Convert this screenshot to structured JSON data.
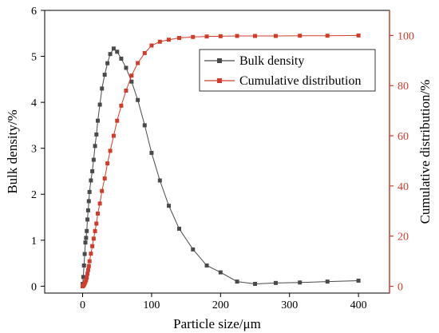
{
  "chart_data": {
    "type": "line",
    "title": "",
    "xlabel": "Particle size/μm",
    "ylabel": "Bulk density/%",
    "y2label": "Cumulative distribution/%",
    "xlim": [
      -55,
      445
    ],
    "ylim": [
      -0.15,
      6
    ],
    "y2lim": [
      -2.7,
      110
    ],
    "xticks": [
      0,
      100,
      200,
      300,
      400
    ],
    "yticks": [
      0,
      1,
      2,
      3,
      4,
      5,
      6
    ],
    "y2ticks": [
      0,
      20,
      40,
      60,
      80,
      100
    ],
    "legend_position": "upper-right",
    "grid": false,
    "series": [
      {
        "name": "Bulk density",
        "axis": "left",
        "color": "#4a4a4a",
        "marker": "square",
        "x": [
          0,
          1,
          2,
          3,
          4,
          5,
          6,
          7,
          8,
          9,
          10,
          12,
          14,
          16,
          18,
          20,
          22,
          25,
          28,
          32,
          36,
          40,
          45,
          50,
          56,
          63,
          71,
          80,
          90,
          100,
          112,
          125,
          140,
          160,
          180,
          200,
          224,
          250,
          280,
          315,
          355,
          400
        ],
        "values": [
          0.05,
          0.2,
          0.45,
          0.7,
          0.95,
          1.05,
          1.2,
          1.45,
          1.65,
          1.85,
          2.05,
          2.3,
          2.5,
          2.75,
          3.05,
          3.3,
          3.6,
          3.95,
          4.3,
          4.6,
          4.85,
          5.05,
          5.17,
          5.1,
          4.95,
          4.75,
          4.45,
          4.05,
          3.5,
          2.9,
          2.3,
          1.75,
          1.25,
          0.8,
          0.45,
          0.3,
          0.1,
          0.05,
          0.07,
          0.08,
          0.1,
          0.12
        ]
      },
      {
        "name": "Cumulative distribution",
        "axis": "right",
        "color": "#d23c2a",
        "marker": "square",
        "x": [
          0,
          1,
          2,
          3,
          4,
          5,
          6,
          7,
          8,
          9,
          10,
          12,
          14,
          16,
          18,
          20,
          22,
          25,
          28,
          32,
          36,
          40,
          45,
          50,
          56,
          63,
          71,
          80,
          90,
          100,
          112,
          125,
          140,
          160,
          180,
          200,
          224,
          250,
          280,
          315,
          355,
          400
        ],
        "values": [
          0,
          0.3,
          0.6,
          1.2,
          1.8,
          2.5,
          3.5,
          5,
          6.5,
          8,
          10,
          13,
          16,
          19,
          22,
          25,
          29,
          33,
          38,
          43,
          49,
          54,
          60,
          66,
          72,
          78,
          84,
          89,
          93,
          96,
          97.5,
          98.3,
          99,
          99.4,
          99.6,
          99.7,
          99.8,
          99.8,
          99.8,
          99.9,
          99.9,
          100
        ]
      }
    ]
  }
}
